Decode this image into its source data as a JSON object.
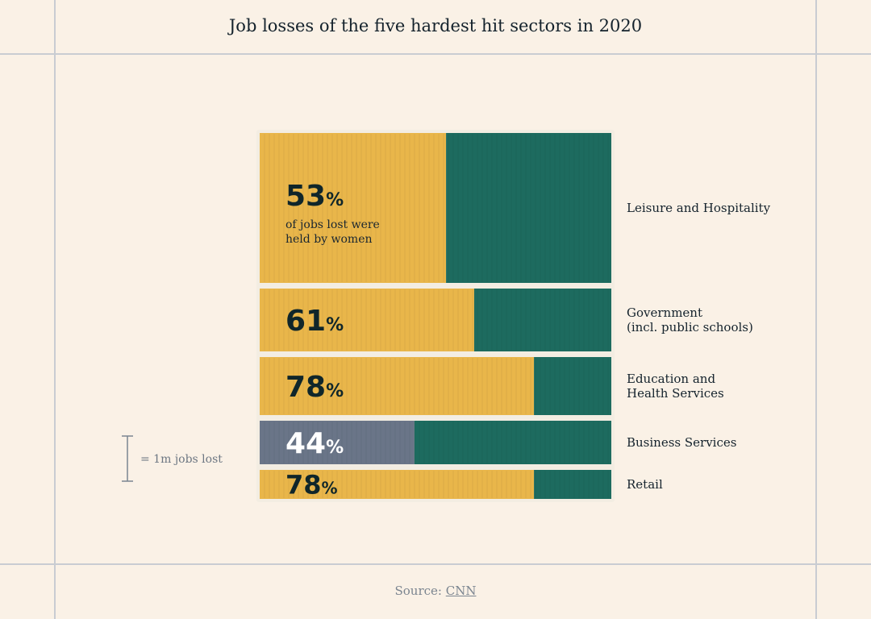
{
  "title": "Job losses of the five hardest hit sectors in 2020",
  "source": {
    "prefix": "Source: ",
    "link_text": "CNN"
  },
  "legend": {
    "text": "= 1m jobs lost"
  },
  "annotation": {
    "line1": "of jobs lost were",
    "line2": "held by women"
  },
  "colors": {
    "women": "#e9b64a",
    "men": "#1d6b5f",
    "women_alt": "#6a7588",
    "border": "#f3ede2",
    "frame": "#c9ccd2"
  },
  "chart_data": {
    "type": "bar",
    "stacked": true,
    "orientation": "horizontal",
    "title": "Job losses of the five hardest hit sectors in 2020",
    "legend": "= 1m jobs lost",
    "categories": [
      [
        "Leisure and Hospitality"
      ],
      [
        "Government",
        "(incl. public schools)"
      ],
      [
        "Education and",
        "Health Services"
      ],
      [
        "Business Services"
      ],
      [
        "Retail"
      ]
    ],
    "percent_women": [
      53,
      61,
      78,
      44,
      78
    ],
    "percent_labels": [
      "53",
      "61",
      "78",
      "44",
      "78"
    ],
    "percent_symbol": "%",
    "jobs_lost_millions": [
      3.1,
      1.3,
      1.2,
      0.9,
      0.6
    ]
  }
}
